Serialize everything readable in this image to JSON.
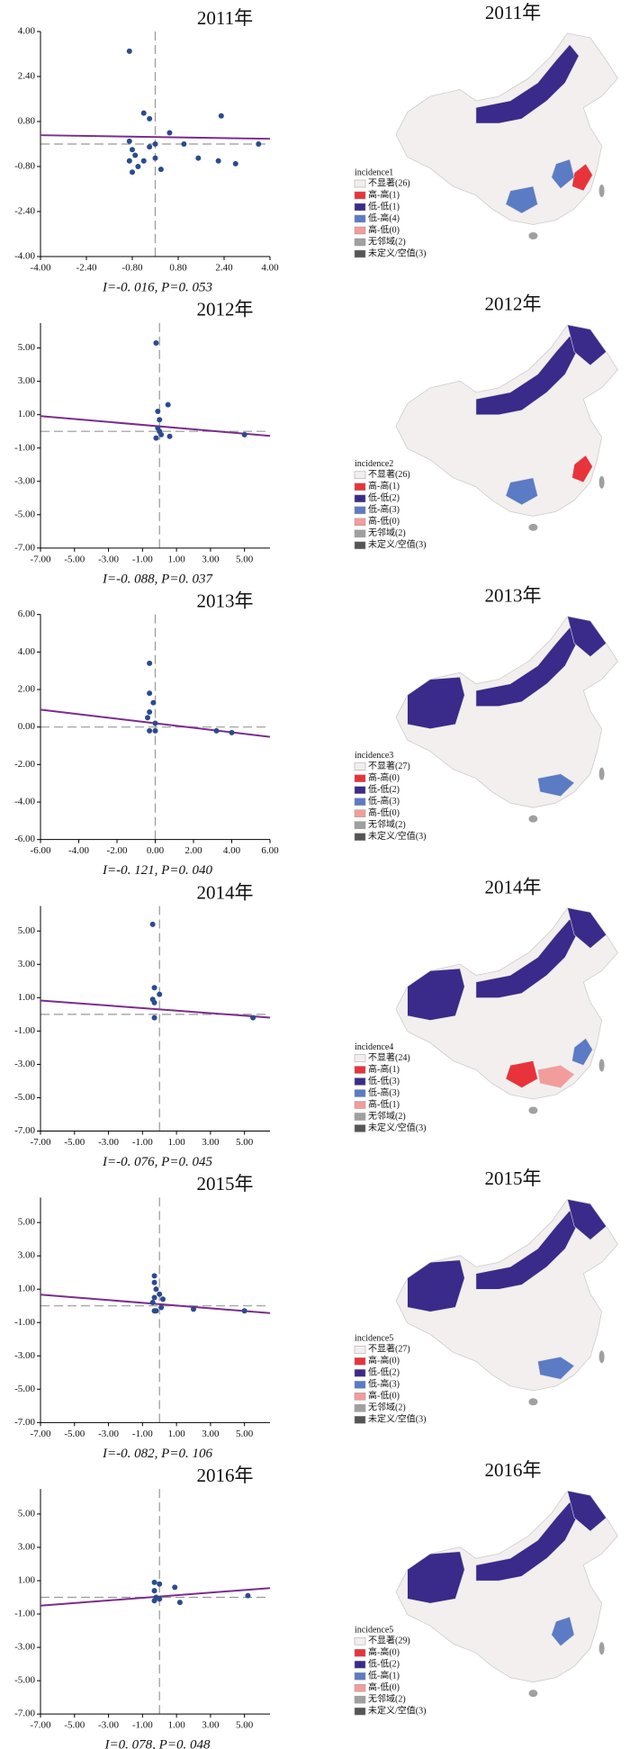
{
  "chart_data": [
    {
      "type": "scatter",
      "title": "2011年",
      "color": "#2b4b8e",
      "x": [
        -0.9,
        -0.4,
        -0.2,
        0.5,
        1.0,
        2.3,
        3.6,
        -0.9,
        -0.8,
        -0.7,
        -0.9,
        -0.6,
        -0.4,
        -0.2,
        0.0,
        0.2,
        1.5,
        2.2,
        2.8,
        -0.8,
        0.0
      ],
      "y": [
        3.3,
        1.1,
        0.9,
        0.4,
        0.0,
        1.0,
        0.0,
        0.1,
        -0.2,
        -0.4,
        -0.6,
        -0.8,
        -0.6,
        -0.1,
        0.0,
        -0.9,
        -0.5,
        -0.6,
        -0.7,
        -1.0,
        -0.5
      ],
      "xlim": [
        -4,
        4
      ],
      "ylim": [
        -4,
        4
      ],
      "xticks": [
        {
          "value": -4,
          "label": "-4.00"
        },
        {
          "value": -2.4,
          "label": "-2.40"
        },
        {
          "value": -0.8,
          "label": "-0.80"
        },
        {
          "value": 0.8,
          "label": "0.80"
        },
        {
          "value": 2.4,
          "label": "2.40"
        },
        {
          "value": 4,
          "label": "4.00"
        }
      ],
      "yticks": [
        {
          "value": 4,
          "label": "4.00"
        },
        {
          "value": 2.4,
          "label": "2.40"
        },
        {
          "value": 0.8,
          "label": "0.80"
        },
        {
          "value": -0.8,
          "label": "-0.80"
        },
        {
          "value": -2.4,
          "label": "-2.40"
        },
        {
          "value": -4,
          "label": "-4.00"
        }
      ],
      "regression": {
        "slope": -0.016,
        "intercept": 0.25,
        "color": "#7b2d8e"
      },
      "annotation": "I=-0. 016, P=0. 053"
    },
    {
      "type": "scatter",
      "title": "2012年",
      "color": "#2b4b8e",
      "x": [
        -0.2,
        0.5,
        -0.1,
        0.0,
        -0.1,
        0.1,
        0.6,
        -0.2,
        5.0,
        0.0
      ],
      "y": [
        5.3,
        1.6,
        1.2,
        0.7,
        0.2,
        -0.2,
        -0.3,
        -0.4,
        -0.2,
        0.0
      ],
      "xlim": [
        -7,
        6.5
      ],
      "ylim": [
        -7,
        6.5
      ],
      "xticks": [
        {
          "value": -7,
          "label": "-7.00"
        },
        {
          "value": -5,
          "label": "-5.00"
        },
        {
          "value": -3,
          "label": "-3.00"
        },
        {
          "value": -1,
          "label": "-1.00"
        },
        {
          "value": 1,
          "label": "1.00"
        },
        {
          "value": 3,
          "label": "3.00"
        },
        {
          "value": 5,
          "label": "5.00"
        }
      ],
      "yticks": [
        {
          "value": 5,
          "label": "5.00"
        },
        {
          "value": 3,
          "label": "3.00"
        },
        {
          "value": 1,
          "label": "1.00"
        },
        {
          "value": -1,
          "label": "-1.00"
        },
        {
          "value": -3,
          "label": "-3.00"
        },
        {
          "value": -5,
          "label": "-5.00"
        },
        {
          "value": -7,
          "label": "-7.00"
        }
      ],
      "regression": {
        "slope": -0.088,
        "intercept": 0.3,
        "color": "#7b2d8e"
      },
      "annotation": "I=-0. 088,   P=0. 037"
    },
    {
      "type": "scatter",
      "title": "2013年",
      "color": "#2b4b8e",
      "x": [
        -0.3,
        -0.3,
        -0.1,
        -0.3,
        -0.4,
        0.0,
        -0.3,
        0.0,
        3.2,
        4.0
      ],
      "y": [
        3.4,
        1.8,
        1.3,
        0.8,
        0.5,
        0.2,
        -0.2,
        -0.2,
        -0.2,
        -0.3
      ],
      "xlim": [
        -6,
        6
      ],
      "ylim": [
        -6,
        6
      ],
      "xticks": [
        {
          "value": -6,
          "label": "-6.00"
        },
        {
          "value": -4,
          "label": "-4.00"
        },
        {
          "value": -2,
          "label": "-2.00"
        },
        {
          "value": 0,
          "label": "0.00"
        },
        {
          "value": 2,
          "label": "2.00"
        },
        {
          "value": 4,
          "label": "4.00"
        },
        {
          "value": 6,
          "label": "6.00"
        }
      ],
      "yticks": [
        {
          "value": 6,
          "label": "6.00"
        },
        {
          "value": 4,
          "label": "4.00"
        },
        {
          "value": 2,
          "label": "2.00"
        },
        {
          "value": 0,
          "label": "0.00"
        },
        {
          "value": -2,
          "label": "-2.00"
        },
        {
          "value": -4,
          "label": "-4.00"
        },
        {
          "value": -6,
          "label": "-6.00"
        }
      ],
      "regression": {
        "slope": -0.121,
        "intercept": 0.2,
        "color": "#7b2d8e"
      },
      "annotation": "I=-0. 121, P=0. 040"
    },
    {
      "type": "scatter",
      "title": "2014年",
      "color": "#2b4b8e",
      "x": [
        -0.4,
        -0.3,
        0.0,
        -0.3,
        -0.4,
        -0.3,
        5.5
      ],
      "y": [
        5.4,
        1.6,
        1.2,
        0.7,
        0.9,
        -0.2,
        -0.2
      ],
      "xlim": [
        -7,
        6.5
      ],
      "ylim": [
        -7,
        6.5
      ],
      "xticks": [
        {
          "value": -7,
          "label": "-7.00"
        },
        {
          "value": -5,
          "label": "-5.00"
        },
        {
          "value": -3,
          "label": "-3.00"
        },
        {
          "value": -1,
          "label": "-1.00"
        },
        {
          "value": 1,
          "label": "1.00"
        },
        {
          "value": 3,
          "label": "3.00"
        },
        {
          "value": 5,
          "label": "5.00"
        }
      ],
      "yticks": [
        {
          "value": 5,
          "label": "5.00"
        },
        {
          "value": 3,
          "label": "3.00"
        },
        {
          "value": 1,
          "label": "1.00"
        },
        {
          "value": -1,
          "label": "-1.00"
        },
        {
          "value": -3,
          "label": "-3.00"
        },
        {
          "value": -5,
          "label": "-5.00"
        },
        {
          "value": -7,
          "label": "-7.00"
        }
      ],
      "regression": {
        "slope": -0.076,
        "intercept": 0.3,
        "color": "#7b2d8e"
      },
      "annotation": "I=-0. 076, P=0. 045"
    },
    {
      "type": "scatter",
      "title": "2015年",
      "color": "#2b4b8e",
      "x": [
        -0.3,
        -0.3,
        -0.2,
        0.0,
        -0.3,
        0.2,
        -0.4,
        -0.3,
        0.1,
        2.0,
        5.0,
        -0.2
      ],
      "y": [
        1.8,
        1.4,
        1.0,
        0.7,
        0.5,
        0.4,
        0.2,
        -0.3,
        -0.1,
        -0.2,
        -0.3,
        -0.3
      ],
      "xlim": [
        -7,
        6.5
      ],
      "ylim": [
        -7,
        6.5
      ],
      "xticks": [
        {
          "value": -7,
          "label": "-7.00"
        },
        {
          "value": -5,
          "label": "-5.00"
        },
        {
          "value": -3,
          "label": "-3.00"
        },
        {
          "value": -1,
          "label": "-1.00"
        },
        {
          "value": 1,
          "label": "1.00"
        },
        {
          "value": 3,
          "label": "3.00"
        },
        {
          "value": 5,
          "label": "5.00"
        }
      ],
      "yticks": [
        {
          "value": 5,
          "label": "5.00"
        },
        {
          "value": 3,
          "label": "3.00"
        },
        {
          "value": 1,
          "label": "1.00"
        },
        {
          "value": -1,
          "label": "-1.00"
        },
        {
          "value": -3,
          "label": "-3.00"
        },
        {
          "value": -5,
          "label": "-5.00"
        },
        {
          "value": -7,
          "label": "-7.00"
        }
      ],
      "regression": {
        "slope": -0.082,
        "intercept": 0.1,
        "color": "#7b2d8e"
      },
      "annotation": "I=-0. 082, P=0. 106"
    },
    {
      "type": "scatter",
      "title": "2016年",
      "color": "#2b4b8e",
      "x": [
        -0.3,
        0.0,
        -0.3,
        0.9,
        -0.2,
        -0.3,
        1.2,
        5.2,
        0.0
      ],
      "y": [
        0.9,
        0.8,
        0.4,
        0.6,
        0.0,
        -0.2,
        -0.3,
        0.1,
        -0.1
      ],
      "xlim": [
        -7,
        6.5
      ],
      "ylim": [
        -7,
        6.5
      ],
      "xticks": [
        {
          "value": -7,
          "label": "-7.00"
        },
        {
          "value": -5,
          "label": "-5.00"
        },
        {
          "value": -3,
          "label": "-3.00"
        },
        {
          "value": -1,
          "label": "-1.00"
        },
        {
          "value": 1,
          "label": "1.00"
        },
        {
          "value": 3,
          "label": "3.00"
        },
        {
          "value": 5,
          "label": "5.00"
        }
      ],
      "yticks": [
        {
          "value": 5,
          "label": "5.00"
        },
        {
          "value": 3,
          "label": "3.00"
        },
        {
          "value": 1,
          "label": "1.00"
        },
        {
          "value": -1,
          "label": "-1.00"
        },
        {
          "value": -3,
          "label": "-3.00"
        },
        {
          "value": -5,
          "label": "-5.00"
        },
        {
          "value": -7,
          "label": "-7.00"
        }
      ],
      "regression": {
        "slope": 0.078,
        "intercept": 0.05,
        "color": "#7b2d8e"
      },
      "annotation": "I=0. 078, P=0. 048"
    }
  ],
  "legend_colors": [
    "#f3efef",
    "#e8333a",
    "#3a2a8a",
    "#5b7bc4",
    "#f39c9c",
    "#a0a0a0",
    "#555555"
  ],
  "maps": [
    {
      "title": "2011年",
      "legend_title": "incidence1",
      "legend": [
        "不显著(26)",
        "高-高(1)",
        "低-低(1)",
        "低-高(4)",
        "高-低(0)",
        "无邻域(2)",
        "未定义/空值(3)"
      ]
    },
    {
      "title": "2012年",
      "legend_title": "incidence2",
      "legend": [
        "不显著(26)",
        "高-高(1)",
        "低-低(2)",
        "低-高(3)",
        "高-低(0)",
        "无邻域(2)",
        "未定义/空值(3)"
      ]
    },
    {
      "title": "2013年",
      "legend_title": "incidence3",
      "legend": [
        "不显著(27)",
        "高-高(0)",
        "低-低(2)",
        "低-高(3)",
        "高-低(0)",
        "无邻域(2)",
        "未定义/空值(3)"
      ]
    },
    {
      "title": "2014年",
      "legend_title": "incidence4",
      "legend": [
        "不显著(24)",
        "高-高(1)",
        "低-低(3)",
        "低-高(3)",
        "高-低(1)",
        "无邻域(2)",
        "未定义/空值(3)"
      ]
    },
    {
      "title": "2015年",
      "legend_title": "incidence5",
      "legend": [
        "不显著(27)",
        "高-高(0)",
        "低-低(2)",
        "低-高(3)",
        "高-低(0)",
        "无邻域(2)",
        "未定义/空值(3)"
      ]
    },
    {
      "title": "2016年",
      "legend_title": "incidence5",
      "legend": [
        "不显著(29)",
        "高-高(0)",
        "低-低(2)",
        "低-高(1)",
        "高-低(0)",
        "无邻域(2)",
        "未定义/空值(3)"
      ]
    }
  ]
}
